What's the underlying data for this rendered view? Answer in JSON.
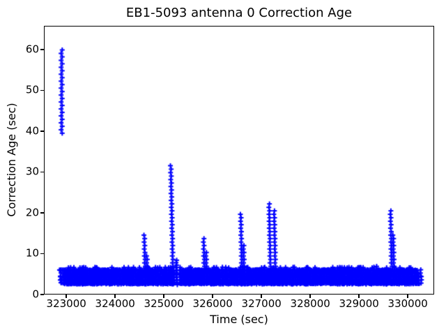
{
  "figure": {
    "background": "#ffffff",
    "text_color": "#000000"
  },
  "chart_data": {
    "type": "scatter",
    "title": "EB1-5093 antenna 0 Correction Age",
    "xlabel": "Time (sec)",
    "ylabel": "Correction Age (sec)",
    "xlim": [
      322540,
      330540
    ],
    "ylim": [
      0,
      65.8
    ],
    "xticks": [
      323000,
      324000,
      325000,
      326000,
      327000,
      328000,
      329000,
      330000
    ],
    "yticks": [
      0,
      10,
      20,
      30,
      40,
      50,
      60
    ],
    "grid": false,
    "legend": null,
    "marker": {
      "shape": "plus",
      "color": "#0000ff",
      "size": 7,
      "stroke": 2,
      "age_step": 0.85
    },
    "band": {
      "t_start": 322854,
      "t_end": 330283,
      "age_min": 2.55,
      "age_max": 6.75,
      "gaps": [
        [
          325211,
          325326
        ]
      ]
    },
    "startup_column": {
      "t": 322904,
      "age_min": 39.5,
      "age_max": 60.5
    },
    "spikes": [
      {
        "t": 324611,
        "peak": 14.8,
        "shoulders": [
          {
            "dt": 45,
            "peak": 9.6
          }
        ]
      },
      {
        "t": 325183,
        "peak": 31.6,
        "tail": {
          "dt": 85,
          "age_min": 2.4,
          "age_max": 8.4
        }
      },
      {
        "t": 325826,
        "peak": 14.2,
        "shoulders": [
          {
            "dt": 45,
            "peak": 10.5
          }
        ]
      },
      {
        "t": 326597,
        "peak": 20.5,
        "shoulders": [
          {
            "dt": 45,
            "peak": 12.6
          }
        ]
      },
      {
        "t": 327183,
        "peak": 22.9,
        "shoulders": [
          {
            "dt": 100,
            "peak": 21.2
          }
        ]
      },
      {
        "t": 329354,
        "peak": 7.7,
        "shoulders": []
      },
      {
        "t": 329669,
        "peak": 20.6,
        "shoulders": [
          {
            "dt": 45,
            "peak": 14.6
          }
        ]
      }
    ]
  }
}
